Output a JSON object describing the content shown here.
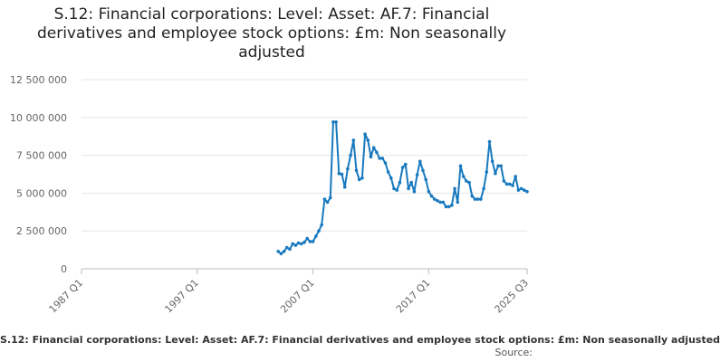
{
  "title_lines": [
    "S.12: Financial corporations: Level: Asset: AF.7: Financial",
    "derivatives and employee stock options: £m: Non seasonally",
    "adjusted"
  ],
  "legend_text": "S.12: Financial corporations: Level: Asset: AF.7: Financial derivatives and employee stock options: £m: Non seasonally adjusted",
  "source_label": "Source:",
  "colors": {
    "line": "#1879bf",
    "grid": "#e6e6e6",
    "axis": "#bbbbbb",
    "tick_text": "#666666"
  },
  "chart_data": {
    "type": "line",
    "title": "S.12: Financial corporations: Level: Asset: AF.7: Financial derivatives and employee stock options: £m: Non seasonally adjusted",
    "xlabel": "",
    "ylabel": "",
    "ylim": [
      0,
      12500000
    ],
    "xlim": [
      "1987 Q1",
      "2025 Q3"
    ],
    "grid": true,
    "y_ticks": [
      {
        "value": 0,
        "label": "0"
      },
      {
        "value": 2500000,
        "label": "2 500 000"
      },
      {
        "value": 5000000,
        "label": "5 000 000"
      },
      {
        "value": 7500000,
        "label": "7 500 000"
      },
      {
        "value": 10000000,
        "label": "10 000 000"
      },
      {
        "value": 12500000,
        "label": "12 500 000"
      }
    ],
    "x_ticks": [
      "1987 Q1",
      "1997 Q1",
      "2007 Q1",
      "2017 Q1",
      "2025 Q3"
    ],
    "series": [
      {
        "x": [
          "2004 Q1",
          "2004 Q2",
          "2004 Q3",
          "2004 Q4",
          "2005 Q1",
          "2005 Q2",
          "2005 Q3",
          "2005 Q4",
          "2006 Q1",
          "2006 Q2",
          "2006 Q3",
          "2006 Q4",
          "2007 Q1",
          "2007 Q2",
          "2007 Q3",
          "2007 Q4",
          "2008 Q1",
          "2008 Q2",
          "2008 Q3",
          "2008 Q4",
          "2009 Q1",
          "2009 Q2",
          "2009 Q3",
          "2009 Q4",
          "2010 Q1",
          "2010 Q2",
          "2010 Q3",
          "2010 Q4",
          "2011 Q1",
          "2011 Q2",
          "2011 Q3",
          "2011 Q4",
          "2012 Q1",
          "2012 Q2",
          "2012 Q3",
          "2012 Q4",
          "2013 Q1",
          "2013 Q2",
          "2013 Q3",
          "2013 Q4",
          "2014 Q1",
          "2014 Q2",
          "2014 Q3",
          "2014 Q4",
          "2015 Q1",
          "2015 Q2",
          "2015 Q3",
          "2015 Q4",
          "2016 Q1",
          "2016 Q2",
          "2016 Q3",
          "2016 Q4",
          "2017 Q1",
          "2017 Q2",
          "2017 Q3",
          "2017 Q4",
          "2018 Q1",
          "2018 Q2",
          "2018 Q3",
          "2018 Q4",
          "2019 Q1",
          "2019 Q2",
          "2019 Q3",
          "2019 Q4",
          "2020 Q1",
          "2020 Q2",
          "2020 Q3",
          "2020 Q4",
          "2021 Q1",
          "2021 Q2",
          "2021 Q3",
          "2021 Q4",
          "2022 Q1",
          "2022 Q2",
          "2022 Q3",
          "2022 Q4",
          "2023 Q1",
          "2023 Q2",
          "2023 Q3",
          "2023 Q4",
          "2024 Q1",
          "2024 Q2",
          "2024 Q3",
          "2024 Q4",
          "2025 Q1",
          "2025 Q2",
          "2025 Q3"
        ],
        "values": [
          1150000,
          1000000,
          1150000,
          1400000,
          1300000,
          1650000,
          1550000,
          1700000,
          1650000,
          1750000,
          2000000,
          1800000,
          1800000,
          2150000,
          2500000,
          2900000,
          4600000,
          4400000,
          4700000,
          9700000,
          9700000,
          6300000,
          6250000,
          5400000,
          6600000,
          7500000,
          8500000,
          6500000,
          5900000,
          6000000,
          8900000,
          8500000,
          7400000,
          8000000,
          7700000,
          7300000,
          7300000,
          7000000,
          6400000,
          6000000,
          5300000,
          5200000,
          5700000,
          6700000,
          6900000,
          5300000,
          5700000,
          5100000,
          6200000,
          7100000,
          6500000,
          5900000,
          5100000,
          4800000,
          4600000,
          4500000,
          4400000,
          4400000,
          4100000,
          4100000,
          4200000,
          5300000,
          4400000,
          6800000,
          6100000,
          5800000,
          5700000,
          4800000,
          4600000,
          4600000,
          4600000,
          5300000,
          6400000,
          8400000,
          7100000,
          6300000,
          6800000,
          6800000,
          5800000,
          5600000,
          5600000,
          5500000,
          6100000,
          5200000,
          5300000,
          5200000,
          5100000
        ]
      }
    ]
  }
}
